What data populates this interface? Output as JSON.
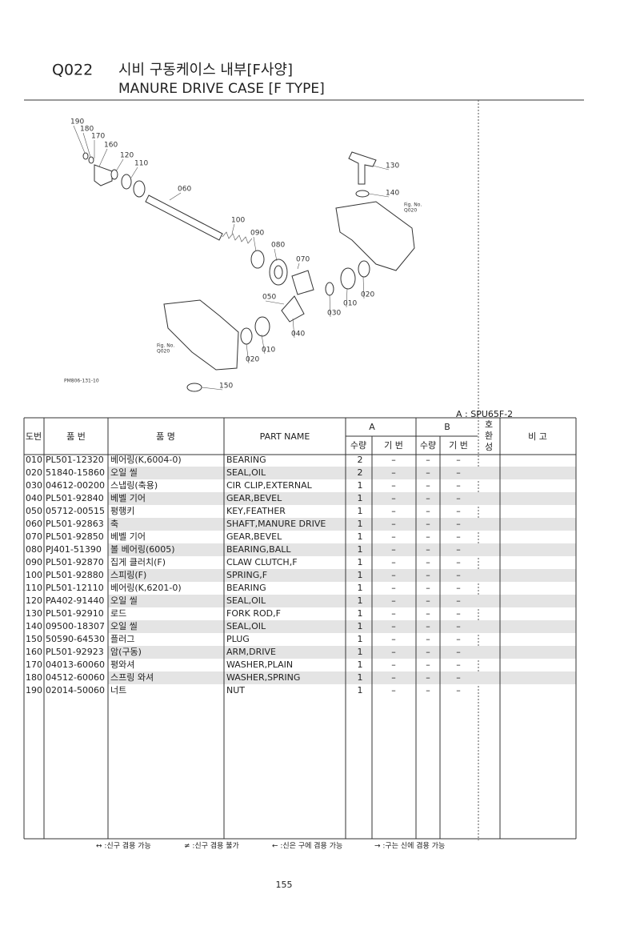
{
  "header": {
    "code": "Q022",
    "title_ko": "시비 구동케이스 내부[F사양]",
    "title_en": "MANURE DRIVE CASE [F TYPE]"
  },
  "diagram": {
    "labels": [
      "190",
      "180",
      "170",
      "160",
      "120",
      "110",
      "060",
      "100",
      "090",
      "080",
      "070",
      "050",
      "040",
      "030",
      "010",
      "020",
      "130",
      "140",
      "010",
      "020",
      "150"
    ],
    "fig_refs": [
      [
        "Fig. No.",
        "Q020"
      ],
      [
        "Fig. No.",
        "Q020"
      ]
    ],
    "drawing_no": "PM806-131-10"
  },
  "model_note": "A : SPU65F-2",
  "table": {
    "headers": {
      "no": "도번",
      "part_no": "품 번",
      "name_ko": "품 명",
      "part_name": "PART NAME",
      "group_a": "A",
      "group_b": "B",
      "compat": [
        "호",
        "환",
        "성"
      ],
      "remarks": "비 고",
      "qty_a": "수량",
      "serial_a": "기 번",
      "qty_b": "수량",
      "serial_b": "기 번"
    },
    "rows": [
      [
        "010",
        "PL501-12320",
        "베어링(K,6004-0)",
        "BEARING",
        "2",
        "–",
        "–",
        "–"
      ],
      [
        "020",
        "51840-15860",
        "오일 씰",
        "SEAL,OIL",
        "2",
        "–",
        "–",
        "–"
      ],
      [
        "030",
        "04612-00200",
        "스냅링(축용)",
        "CIR CLIP,EXTERNAL",
        "1",
        "–",
        "–",
        "–"
      ],
      [
        "040",
        "PL501-92840",
        "베벨 기어",
        "GEAR,BEVEL",
        "1",
        "–",
        "–",
        "–"
      ],
      [
        "050",
        "05712-00515",
        "평행키",
        "KEY,FEATHER",
        "1",
        "–",
        "–",
        "–"
      ],
      [
        "060",
        "PL501-92863",
        "축",
        "SHAFT,MANURE DRIVE",
        "1",
        "–",
        "–",
        "–"
      ],
      [
        "070",
        "PL501-92850",
        "베벨 기어",
        "GEAR,BEVEL",
        "1",
        "–",
        "–",
        "–"
      ],
      [
        "080",
        "PJ401-51390",
        "볼 베어링(6005)",
        "BEARING,BALL",
        "1",
        "–",
        "–",
        "–"
      ],
      [
        "090",
        "PL501-92870",
        "집게 클러치(F)",
        "CLAW CLUTCH,F",
        "1",
        "–",
        "–",
        "–"
      ],
      [
        "100",
        "PL501-92880",
        "스피링(F)",
        "SPRING,F",
        "1",
        "–",
        "–",
        "–"
      ],
      [
        "110",
        "PL501-12110",
        "베어링(K,6201-0)",
        "BEARING",
        "1",
        "–",
        "–",
        "–"
      ],
      [
        "120",
        "PA402-91440",
        "오일 씰",
        "SEAL,OIL",
        "1",
        "–",
        "–",
        "–"
      ],
      [
        "130",
        "PL501-92910",
        "로드",
        "FORK ROD,F",
        "1",
        "–",
        "–",
        "–"
      ],
      [
        "140",
        "09500-18307",
        "오일 씰",
        "SEAL,OIL",
        "1",
        "–",
        "–",
        "–"
      ],
      [
        "150",
        "50590-64530",
        "플러그",
        "PLUG",
        "1",
        "–",
        "–",
        "–"
      ],
      [
        "160",
        "PL501-92923",
        "암(구동)",
        "ARM,DRIVE",
        "1",
        "–",
        "–",
        "–"
      ],
      [
        "170",
        "04013-60060",
        "평와셔",
        "WASHER,PLAIN",
        "1",
        "–",
        "–",
        "–"
      ],
      [
        "180",
        "04512-60060",
        "스프링 와셔",
        "WASHER,SPRING",
        "1",
        "–",
        "–",
        "–"
      ],
      [
        "190",
        "02014-50060",
        "너트",
        "NUT",
        "1",
        "–",
        "–",
        "–"
      ]
    ]
  },
  "legend": [
    "↔ :신구 겸용 가능",
    "≠ :신구 겸용 불가",
    "← :신은 구에 겸용 가능",
    "→ :구는 신에 겸용 가능"
  ],
  "page_number": "155"
}
